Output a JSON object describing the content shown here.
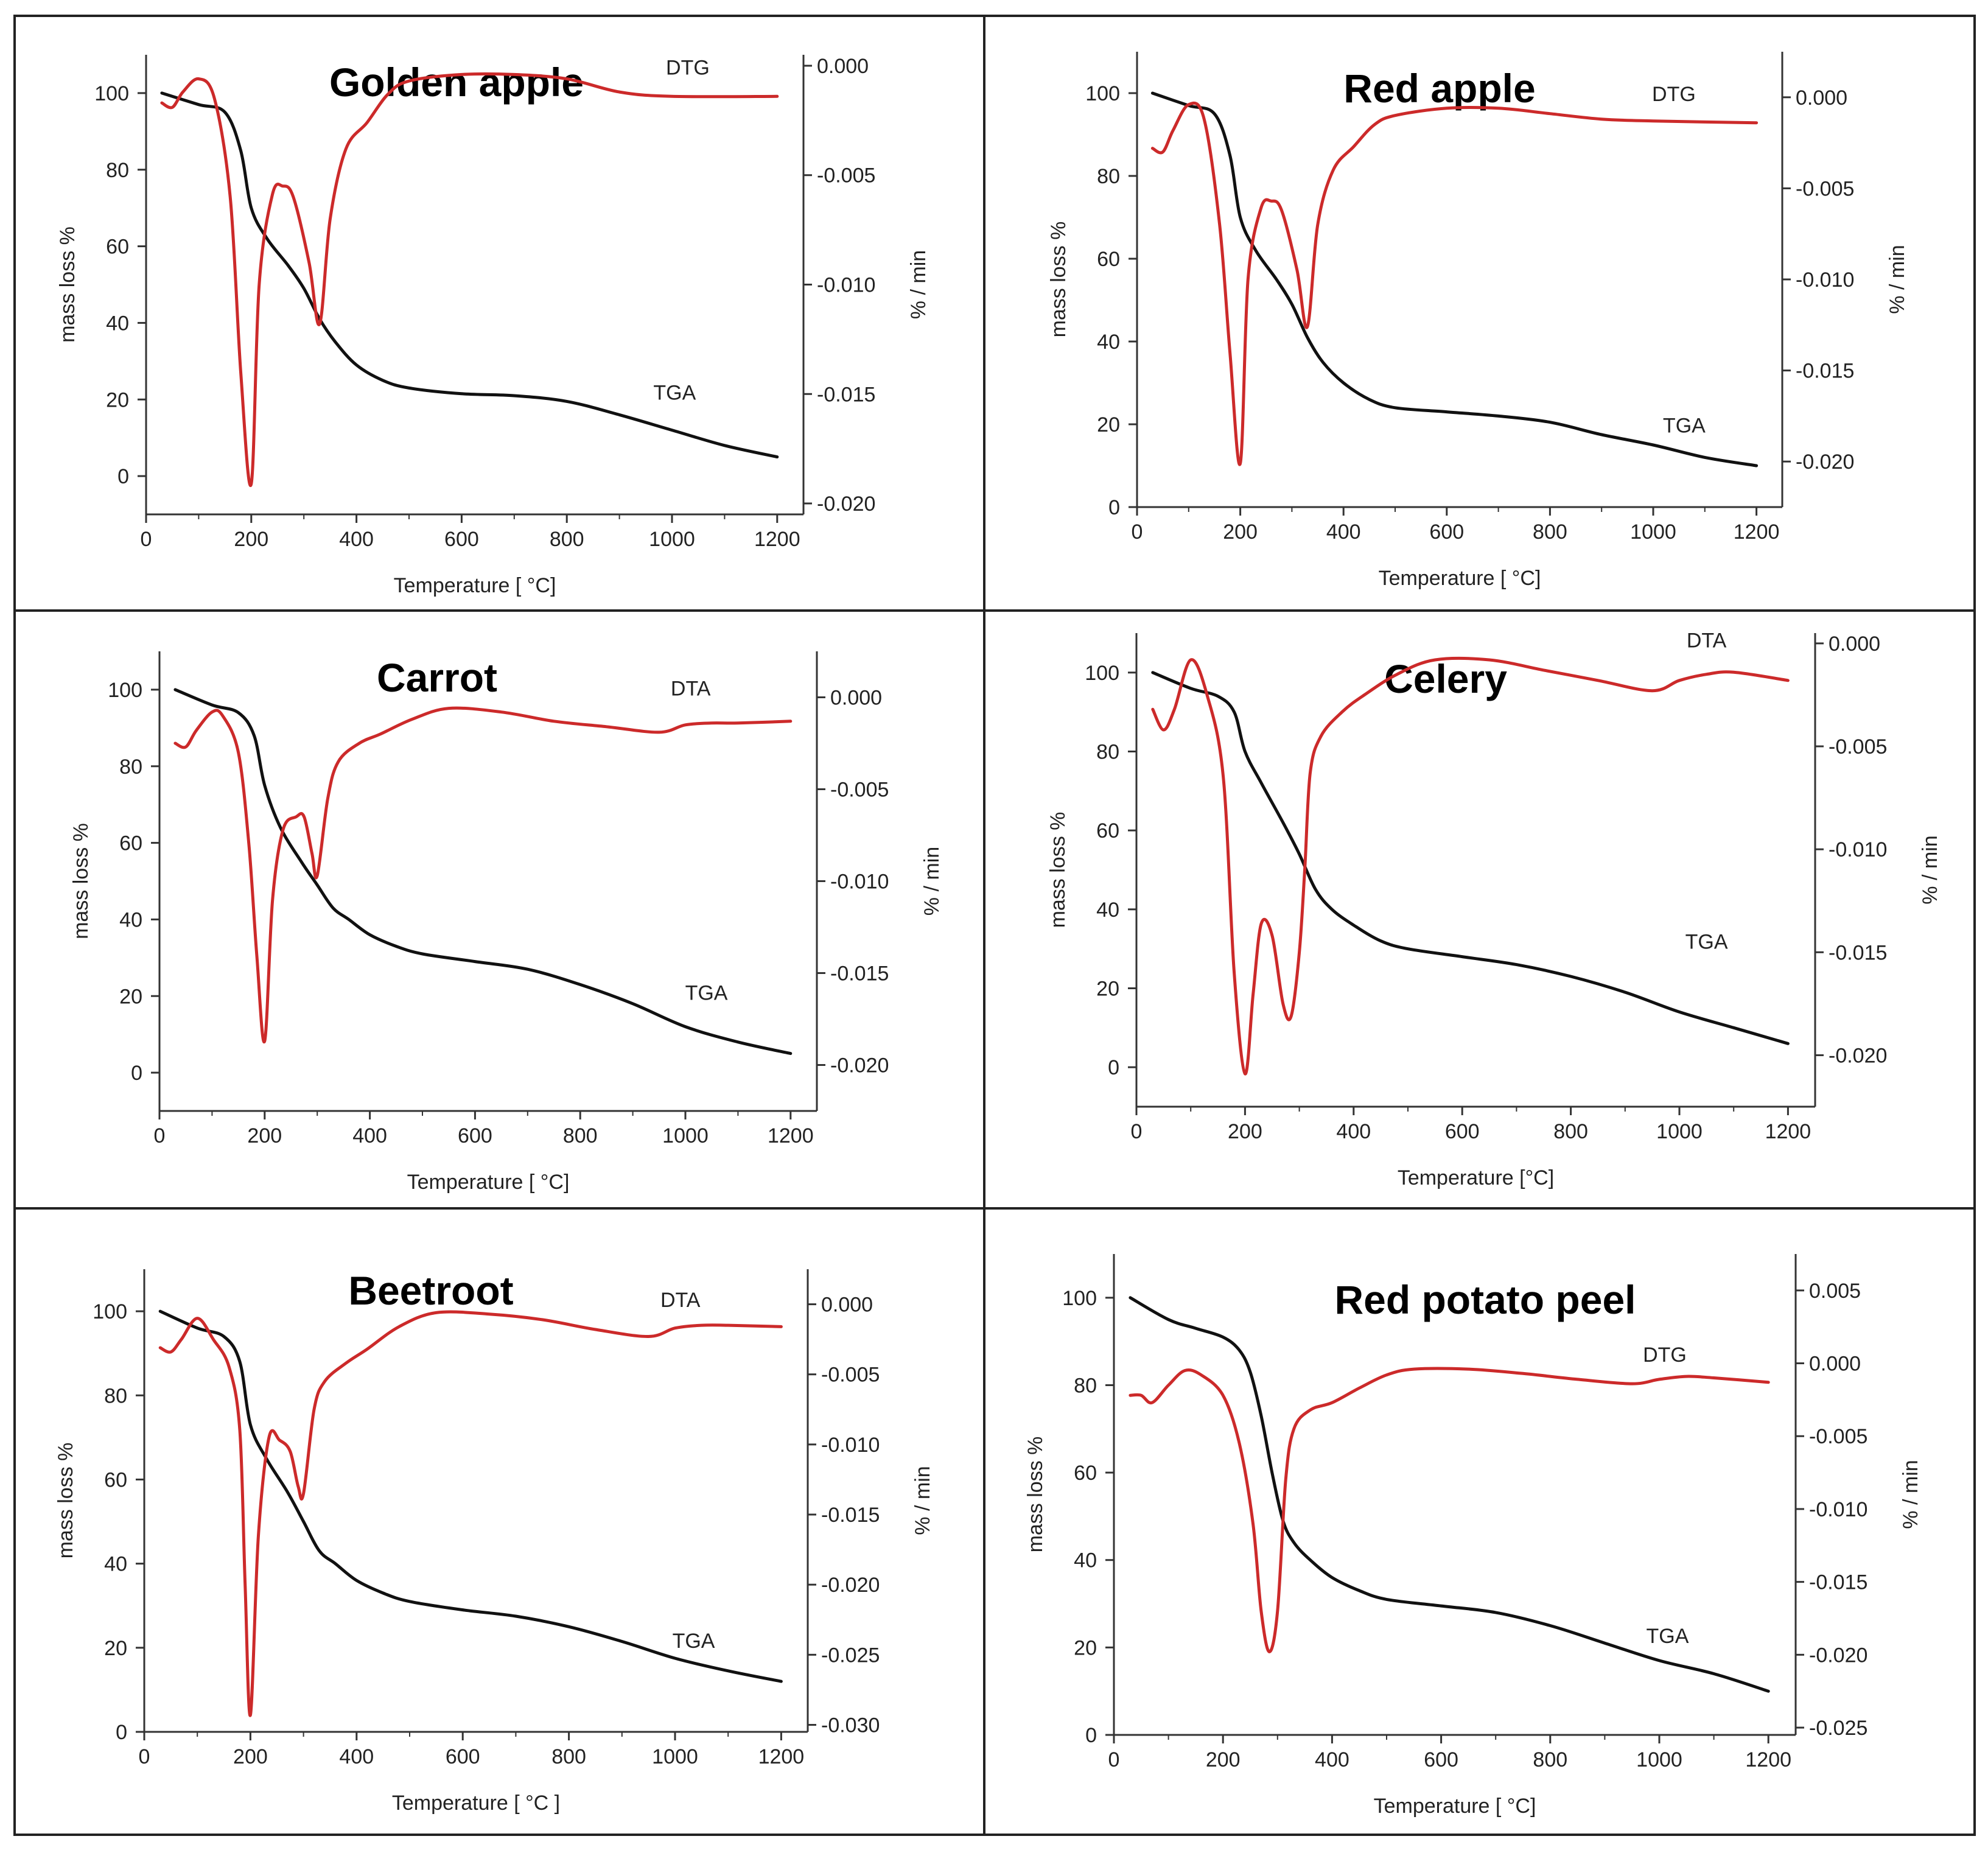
{
  "figure": {
    "colors": {
      "tga": "#111111",
      "dtg": "#cc2a2a",
      "frame": "#222222",
      "axis": "#333333"
    }
  },
  "chart_data": [
    {
      "type": "line",
      "title": "Golden apple",
      "xlabel": "Temperature [ °C]",
      "ylabel_left": "mass loss %",
      "ylabel_right": "% / min",
      "xlim": [
        0,
        1250
      ],
      "xticks": [
        0,
        200,
        400,
        600,
        800,
        1000,
        1200
      ],
      "ylim_left": [
        -10,
        110
      ],
      "yticks_left": [
        0,
        20,
        40,
        60,
        80,
        100
      ],
      "ylim_right": [
        -0.0205,
        0.0005
      ],
      "yticks_right": [
        0.0,
        -0.005,
        -0.01,
        -0.015,
        -0.02
      ],
      "tick_labels_right": [
        "0.000",
        "-0.005",
        "-0.010",
        "-0.015",
        "-0.020"
      ],
      "series": [
        {
          "name": "TGA",
          "axis": "left",
          "label": "TGA",
          "label_at": [
            1005,
            20
          ],
          "x": [
            30,
            100,
            150,
            180,
            200,
            230,
            270,
            300,
            330,
            360,
            400,
            450,
            500,
            600,
            700,
            800,
            900,
            1000,
            1100,
            1200
          ],
          "y": [
            100,
            97,
            95,
            85,
            70,
            62,
            55,
            49,
            41,
            35,
            29,
            25,
            23,
            21.5,
            21,
            19.5,
            16,
            12,
            8,
            5
          ]
        },
        {
          "name": "DTG",
          "axis": "right",
          "label": "DTG",
          "label_at": [
            1030,
            -0.0004
          ],
          "x": [
            30,
            50,
            70,
            100,
            130,
            160,
            180,
            200,
            215,
            240,
            260,
            280,
            310,
            330,
            350,
            380,
            420,
            460,
            500,
            600,
            700,
            800,
            900,
            1000,
            1200
          ],
          "y": [
            -0.0017,
            -0.0019,
            -0.0012,
            -0.0006,
            -0.0015,
            -0.006,
            -0.014,
            -0.0191,
            -0.01,
            -0.0059,
            -0.0055,
            -0.006,
            -0.009,
            -0.0118,
            -0.007,
            -0.0038,
            -0.0026,
            -0.0013,
            -0.0007,
            -0.0004,
            -0.0004,
            -0.0006,
            -0.0012,
            -0.0014,
            -0.0014
          ]
        }
      ]
    },
    {
      "type": "line",
      "title": "Red apple",
      "xlabel": "Temperature [ °C]",
      "ylabel_left": "mass loss %",
      "ylabel_right": "% / min",
      "xlim": [
        0,
        1250
      ],
      "xticks": [
        0,
        200,
        400,
        600,
        800,
        1000,
        1200
      ],
      "ylim_left": [
        0,
        110
      ],
      "yticks_left": [
        0,
        20,
        40,
        60,
        80,
        100
      ],
      "ylim_right": [
        -0.0225,
        0.0025
      ],
      "yticks_right": [
        0.0,
        -0.005,
        -0.01,
        -0.015,
        -0.02
      ],
      "tick_labels_right": [
        "0.000",
        "-0.005",
        "-0.010",
        "-0.015",
        "-0.020"
      ],
      "series": [
        {
          "name": "TGA",
          "axis": "left",
          "label": "TGA",
          "label_at": [
            1060,
            18
          ],
          "x": [
            30,
            100,
            150,
            180,
            200,
            230,
            270,
            300,
            330,
            360,
            400,
            450,
            500,
            600,
            700,
            800,
            900,
            1000,
            1100,
            1200
          ],
          "y": [
            100,
            97,
            95,
            85,
            70,
            62,
            55,
            49,
            41,
            35,
            30,
            26,
            24,
            23,
            22,
            20.5,
            17.5,
            15,
            12,
            10
          ]
        },
        {
          "name": "DTG",
          "axis": "right",
          "label": "DTG",
          "label_at": [
            1040,
            -0.0002
          ],
          "x": [
            30,
            50,
            70,
            100,
            130,
            160,
            180,
            200,
            215,
            240,
            260,
            280,
            310,
            330,
            350,
            380,
            420,
            460,
            500,
            600,
            700,
            800,
            900,
            1000,
            1200
          ],
          "y": [
            -0.0028,
            -0.003,
            -0.0018,
            -0.0004,
            -0.0012,
            -0.007,
            -0.014,
            -0.0201,
            -0.01,
            -0.0061,
            -0.0057,
            -0.0062,
            -0.0095,
            -0.0126,
            -0.007,
            -0.004,
            -0.0027,
            -0.0015,
            -0.001,
            -0.0006,
            -0.0006,
            -0.0009,
            -0.0012,
            -0.0013,
            -0.0014
          ]
        }
      ]
    },
    {
      "type": "line",
      "title": "Carrot",
      "xlabel": "Temperature [ °C]",
      "ylabel_left": "mass loss %",
      "ylabel_right": "% / min",
      "xlim": [
        0,
        1250
      ],
      "xticks": [
        0,
        200,
        400,
        600,
        800,
        1000,
        1200
      ],
      "ylim_left": [
        -10,
        110
      ],
      "yticks_left": [
        0,
        20,
        40,
        60,
        80,
        100
      ],
      "ylim_right": [
        -0.0225,
        0.0025
      ],
      "yticks_right": [
        0.0,
        -0.005,
        -0.01,
        -0.015,
        -0.02
      ],
      "tick_labels_right": [
        "0.000",
        "-0.005",
        "-0.010",
        "-0.015",
        "-0.020"
      ],
      "series": [
        {
          "name": "TGA",
          "axis": "left",
          "label": "TGA",
          "label_at": [
            1040,
            19
          ],
          "x": [
            30,
            100,
            150,
            180,
            200,
            230,
            270,
            300,
            330,
            360,
            400,
            450,
            500,
            600,
            700,
            800,
            900,
            1000,
            1100,
            1200
          ],
          "y": [
            100,
            96,
            94,
            88,
            75,
            64,
            55,
            49,
            43,
            40,
            36,
            33,
            31,
            29,
            27,
            23,
            18,
            12,
            8,
            5
          ]
        },
        {
          "name": "DTA",
          "axis": "right",
          "label": "DTA",
          "label_at": [
            1010,
            0.0001
          ],
          "x": [
            30,
            50,
            70,
            100,
            120,
            150,
            170,
            185,
            200,
            215,
            235,
            260,
            275,
            290,
            300,
            320,
            340,
            380,
            420,
            480,
            550,
            650,
            750,
            850,
            950,
            1000,
            1050,
            1100,
            1200
          ],
          "y": [
            -0.0025,
            -0.0027,
            -0.0018,
            -0.0008,
            -0.001,
            -0.003,
            -0.008,
            -0.014,
            -0.0187,
            -0.011,
            -0.0072,
            -0.0065,
            -0.0065,
            -0.0085,
            -0.0097,
            -0.0055,
            -0.0035,
            -0.0025,
            -0.002,
            -0.0012,
            -0.0006,
            -0.0008,
            -0.0013,
            -0.0016,
            -0.0019,
            -0.0015,
            -0.0014,
            -0.0014,
            -0.0013
          ]
        }
      ]
    },
    {
      "type": "line",
      "title": "Celery",
      "xlabel": "Temperature [°C]",
      "ylabel_left": "mass loss %",
      "ylabel_right": "% / min",
      "xlim": [
        0,
        1250
      ],
      "xticks": [
        0,
        200,
        400,
        600,
        800,
        1000,
        1200
      ],
      "ylim_left": [
        -10,
        110
      ],
      "yticks_left": [
        0,
        20,
        40,
        60,
        80,
        100
      ],
      "ylim_right": [
        -0.0225,
        0.0005
      ],
      "yticks_right": [
        0.0,
        -0.005,
        -0.01,
        -0.015,
        -0.02
      ],
      "tick_labels_right": [
        "0.000",
        "-0.005",
        "-0.010",
        "-0.015",
        "-0.020"
      ],
      "series": [
        {
          "name": "TGA",
          "axis": "left",
          "label": "TGA",
          "label_at": [
            1050,
            30
          ],
          "x": [
            30,
            100,
            150,
            180,
            200,
            230,
            270,
            300,
            330,
            360,
            400,
            450,
            500,
            600,
            700,
            800,
            900,
            1000,
            1100,
            1200
          ],
          "y": [
            100,
            96,
            94,
            90,
            80,
            72,
            62,
            54,
            45,
            40,
            36,
            32,
            30,
            28,
            26,
            23,
            19,
            14,
            10,
            6
          ]
        },
        {
          "name": "DTA",
          "axis": "right",
          "label": "DTA",
          "label_at": [
            1050,
            -0.0002
          ],
          "x": [
            30,
            50,
            70,
            100,
            130,
            160,
            180,
            200,
            215,
            230,
            250,
            270,
            285,
            300,
            310,
            320,
            340,
            380,
            420,
            480,
            550,
            650,
            750,
            850,
            950,
            1000,
            1050,
            1100,
            1200
          ],
          "y": [
            -0.0032,
            -0.0042,
            -0.0032,
            -0.0008,
            -0.0025,
            -0.0065,
            -0.016,
            -0.0209,
            -0.017,
            -0.0136,
            -0.0142,
            -0.0175,
            -0.0181,
            -0.015,
            -0.011,
            -0.0063,
            -0.0045,
            -0.0033,
            -0.0025,
            -0.0015,
            -0.0008,
            -0.0008,
            -0.0013,
            -0.0018,
            -0.0023,
            -0.0018,
            -0.0015,
            -0.0014,
            -0.0018
          ]
        }
      ]
    },
    {
      "type": "line",
      "title": "Beetroot",
      "xlabel": "Temperature [ °C ]",
      "ylabel_left": "mass loss %",
      "ylabel_right": "% / min",
      "xlim": [
        0,
        1250
      ],
      "xticks": [
        0,
        200,
        400,
        600,
        800,
        1000,
        1200
      ],
      "ylim_left": [
        0,
        110
      ],
      "yticks_left": [
        0,
        20,
        40,
        60,
        80,
        100
      ],
      "ylim_right": [
        -0.0305,
        0.0025
      ],
      "yticks_right": [
        0.0,
        -0.005,
        -0.01,
        -0.015,
        -0.02,
        -0.025,
        -0.03
      ],
      "tick_labels_right": [
        "0.000",
        "-0.005",
        "-0.010",
        "-0.015",
        "-0.020",
        "-0.025",
        "-0.030"
      ],
      "series": [
        {
          "name": "TGA",
          "axis": "left",
          "label": "TGA",
          "label_at": [
            1035,
            20
          ],
          "x": [
            30,
            100,
            150,
            180,
            200,
            230,
            270,
            300,
            330,
            360,
            400,
            450,
            500,
            600,
            700,
            800,
            900,
            1000,
            1100,
            1200
          ],
          "y": [
            100,
            96,
            94,
            88,
            73,
            65,
            57,
            50,
            43,
            40,
            36,
            33,
            31,
            29,
            27.5,
            25,
            21.5,
            17.5,
            14.5,
            12
          ]
        },
        {
          "name": "DTA",
          "axis": "right",
          "label": "DTA",
          "label_at": [
            1010,
            -0.0002
          ],
          "x": [
            30,
            50,
            70,
            100,
            130,
            160,
            180,
            190,
            200,
            215,
            235,
            255,
            275,
            290,
            300,
            320,
            340,
            380,
            420,
            480,
            550,
            650,
            750,
            850,
            950,
            1000,
            1050,
            1100,
            1200
          ],
          "y": [
            -0.0031,
            -0.0034,
            -0.0025,
            -0.001,
            -0.0025,
            -0.0045,
            -0.009,
            -0.02,
            -0.0293,
            -0.0165,
            -0.0095,
            -0.0097,
            -0.0105,
            -0.013,
            -0.0135,
            -0.0075,
            -0.0055,
            -0.0042,
            -0.0032,
            -0.0016,
            -0.0006,
            -0.0007,
            -0.0011,
            -0.0018,
            -0.0023,
            -0.0017,
            -0.0015,
            -0.0015,
            -0.0016
          ]
        }
      ]
    },
    {
      "type": "line",
      "title": "Red potato peel",
      "xlabel": "Temperature [ °C]",
      "ylabel_left": "mass loss %",
      "ylabel_right": "% / min",
      "xlim": [
        0,
        1250
      ],
      "xticks": [
        0,
        200,
        400,
        600,
        800,
        1000,
        1200
      ],
      "ylim_left": [
        0,
        110
      ],
      "yticks_left": [
        0,
        20,
        40,
        60,
        80,
        100
      ],
      "ylim_right": [
        -0.0255,
        0.0075
      ],
      "yticks_right": [
        0.005,
        0.0,
        -0.005,
        -0.01,
        -0.015,
        -0.02,
        -0.025
      ],
      "tick_labels_right": [
        "0.005",
        "0.000",
        "-0.005",
        "-0.010",
        "-0.015",
        "-0.020",
        "-0.025"
      ],
      "series": [
        {
          "name": "TGA",
          "axis": "left",
          "label": "TGA",
          "label_at": [
            1015,
            21
          ],
          "x": [
            30,
            100,
            150,
            200,
            230,
            250,
            270,
            290,
            310,
            330,
            360,
            400,
            450,
            500,
            600,
            700,
            800,
            900,
            1000,
            1100,
            1200
          ],
          "y": [
            100,
            95,
            93,
            91,
            88,
            83,
            73,
            60,
            49,
            44,
            40,
            36,
            33,
            31,
            29.5,
            28,
            25,
            21,
            17,
            14,
            10
          ]
        },
        {
          "name": "DTG",
          "axis": "right",
          "label": "DTG",
          "label_at": [
            1010,
            0.0001
          ],
          "x": [
            30,
            50,
            70,
            100,
            130,
            160,
            200,
            230,
            255,
            270,
            285,
            300,
            315,
            330,
            360,
            400,
            450,
            500,
            550,
            650,
            750,
            850,
            950,
            1000,
            1050,
            1100,
            1200
          ],
          "y": [
            -0.0022,
            -0.0022,
            -0.0027,
            -0.0015,
            -0.0005,
            -0.0008,
            -0.0022,
            -0.0055,
            -0.011,
            -0.017,
            -0.0198,
            -0.017,
            -0.008,
            -0.0045,
            -0.0032,
            -0.0027,
            -0.0017,
            -0.0008,
            -0.0004,
            -0.0004,
            -0.0007,
            -0.0011,
            -0.0014,
            -0.0011,
            -0.0009,
            -0.001,
            -0.0013
          ]
        }
      ]
    }
  ]
}
